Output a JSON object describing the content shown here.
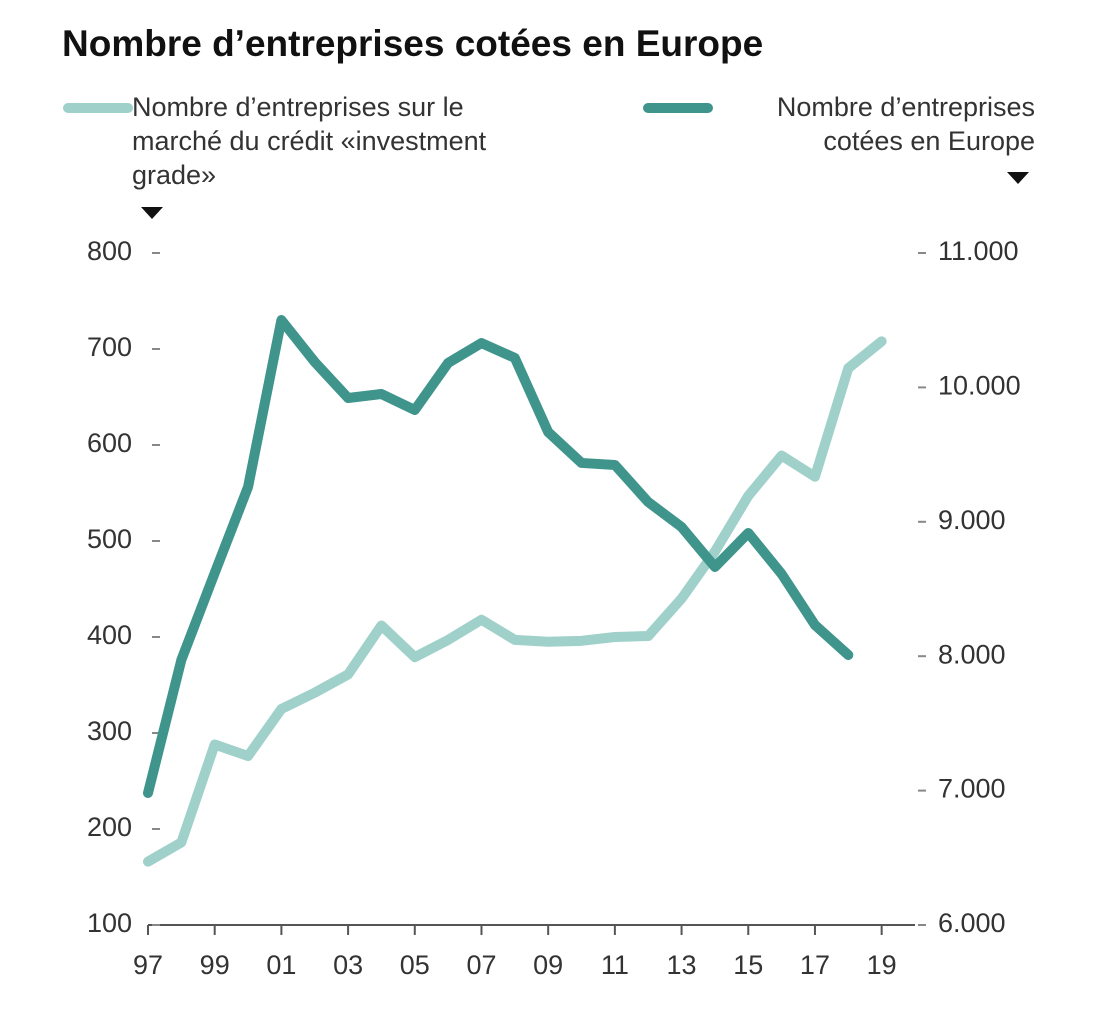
{
  "chart_data": {
    "type": "line",
    "title": "Nombre d’entreprises cotées en Europe",
    "x": [
      1997,
      1998,
      1999,
      2000,
      2001,
      2002,
      2003,
      2004,
      2005,
      2006,
      2007,
      2008,
      2009,
      2010,
      2011,
      2012,
      2013,
      2014,
      2015,
      2016,
      2017,
      2018,
      2019
    ],
    "series": [
      {
        "name": "Nombre d’entreprises sur le marché du crédit «investment grade»",
        "color": "#9fd0ca",
        "values": [
          166,
          186,
          288,
          276,
          325,
          342,
          361,
          412,
          379,
          397,
          418,
          397,
          395,
          396,
          400,
          401,
          440,
          489,
          547,
          589,
          567,
          680,
          708
        ]
      },
      {
        "name": "Nombre d’entreprises cotées en Europe",
        "color": "#3f958c",
        "axis": "y2",
        "values": [
          6982,
          7972,
          8619,
          9259,
          10501,
          10189,
          9921,
          9951,
          9832,
          10182,
          10330,
          10219,
          9668,
          9438,
          9423,
          9147,
          8961,
          8664,
          8917,
          8612,
          8232,
          8009,
          null
        ]
      }
    ],
    "xlim": [
      1997,
      2020
    ],
    "xticks": [
      {
        "value": 1997,
        "label": "97"
      },
      {
        "value": 1999,
        "label": "99"
      },
      {
        "value": 2001,
        "label": "01"
      },
      {
        "value": 2003,
        "label": "03"
      },
      {
        "value": 2005,
        "label": "05"
      },
      {
        "value": 2007,
        "label": "07"
      },
      {
        "value": 2009,
        "label": "09"
      },
      {
        "value": 2011,
        "label": "11"
      },
      {
        "value": 2013,
        "label": "13"
      },
      {
        "value": 2015,
        "label": "15"
      },
      {
        "value": 2017,
        "label": "17"
      },
      {
        "value": 2019,
        "label": "19"
      }
    ],
    "ylim": [
      100,
      800
    ],
    "yticks": [
      100,
      200,
      300,
      400,
      500,
      600,
      700,
      800
    ],
    "y2lim": [
      6000,
      11000
    ],
    "y2ticks": [
      {
        "value": 6000,
        "label": "6.000"
      },
      {
        "value": 7000,
        "label": "7.000"
      },
      {
        "value": 8000,
        "label": "8.000"
      },
      {
        "value": 9000,
        "label": "9.000"
      },
      {
        "value": 10000,
        "label": "10.000"
      },
      {
        "value": 11000,
        "label": "11.000"
      }
    ]
  }
}
